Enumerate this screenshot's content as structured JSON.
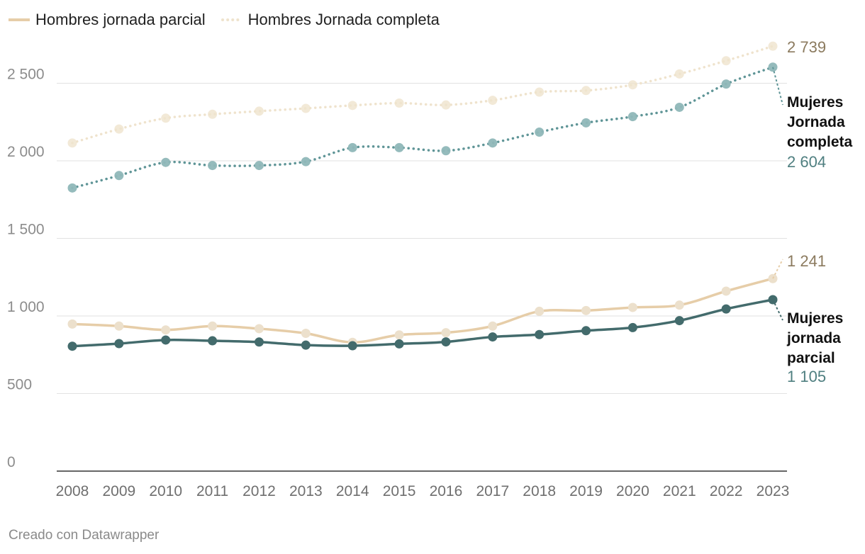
{
  "legend": {
    "item1": "Hombres jornada parcial",
    "item2": "Hombres Jornada completa"
  },
  "footer": "Creado con Datawrapper",
  "colors": {
    "hombres_parcial": "#e6cda8",
    "hombres_completa": "#efe3cd",
    "mujeres_parcial": "#436b6c",
    "mujeres_completa": "#5f9597",
    "label_brown": "#8b7a5e",
    "label_teal": "#4f7f80"
  },
  "chart_data": {
    "type": "line",
    "title": "",
    "xlabel": "",
    "ylabel": "",
    "ylim": [
      0,
      2750
    ],
    "yticks": [
      0,
      500,
      1000,
      1500,
      2000,
      2500
    ],
    "ytick_labels": [
      "0",
      "500",
      "1 000",
      "1 500",
      "2 000",
      "2 500"
    ],
    "x": [
      "2008",
      "2009",
      "2010",
      "2011",
      "2012",
      "2013",
      "2014",
      "2015",
      "2016",
      "2017",
      "2018",
      "2019",
      "2020",
      "2021",
      "2022",
      "2023"
    ],
    "series": [
      {
        "name": "Hombres Jornada completa",
        "style": "dotted",
        "values": [
          2115,
          2205,
          2275,
          2300,
          2320,
          2338,
          2357,
          2372,
          2360,
          2390,
          2443,
          2453,
          2490,
          2560,
          2645,
          2739
        ],
        "end_value_label": "2 739"
      },
      {
        "name": "Mujeres Jornada completa",
        "style": "dotted",
        "values": [
          1825,
          1905,
          1990,
          1970,
          1970,
          1995,
          2085,
          2085,
          2065,
          2115,
          2185,
          2245,
          2285,
          2345,
          2495,
          2604
        ],
        "end_label": "Mujeres Jornada completa",
        "end_label_lines": [
          "Mujeres",
          "Jornada",
          "completa"
        ],
        "end_value_label": "2 604"
      },
      {
        "name": "Hombres jornada parcial",
        "style": "solid",
        "values": [
          948,
          935,
          910,
          935,
          918,
          888,
          830,
          878,
          892,
          935,
          1030,
          1035,
          1055,
          1070,
          1160,
          1241
        ],
        "end_value_label": "1 241"
      },
      {
        "name": "Mujeres jornada parcial",
        "style": "solid",
        "values": [
          805,
          822,
          845,
          840,
          832,
          812,
          808,
          820,
          833,
          865,
          880,
          905,
          925,
          970,
          1045,
          1105
        ],
        "end_label": "Mujeres jornada parcial",
        "end_label_lines": [
          "Mujeres",
          "jornada",
          "parcial"
        ],
        "end_value_label": "1 105"
      }
    ]
  }
}
